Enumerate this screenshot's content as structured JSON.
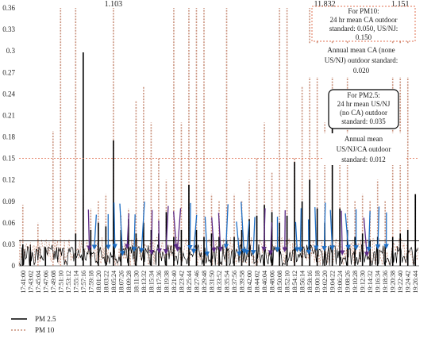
{
  "chart_data": {
    "type": "line",
    "title": "",
    "xlabel": "",
    "ylabel": "",
    "ylim": [
      0,
      0.36
    ],
    "yticks": [
      "0",
      "0.03",
      "0.06",
      "0.09",
      "0.12",
      "0.15",
      "0.18",
      "0.21",
      "0.24",
      "0.27",
      "0.3",
      "0.33",
      "0.36"
    ],
    "xticks": [
      "17:41:00",
      "17:43:02",
      "17:45:04",
      "17:47:06",
      "17:49:08",
      "17:51:10",
      "17:53:12",
      "17:55:14",
      "17:57:16",
      "17:59:18",
      "18:01:20",
      "18:03:22",
      "18:05:24",
      "18:07:26",
      "18:09:28",
      "18:11:30",
      "18:13:32",
      "18:15:34",
      "18:17:36",
      "18:19:38",
      "18:21:40",
      "18:23:42",
      "18:25:44",
      "18:27:46",
      "18:29:48",
      "18:31:50",
      "18:33:52",
      "18:35:54",
      "18:37:56",
      "18:39:58",
      "18:42:00",
      "18:44:02",
      "18:46:04",
      "18:48:06",
      "18:50:08",
      "18:52:10",
      "18:54:12",
      "18:56:14",
      "18:58:16",
      "19:00:18",
      "19:02:20",
      "19:04:22",
      "19:06:24",
      "19:08:26",
      "19:10:28",
      "19:12:30",
      "19:14:32",
      "19:16:34",
      "19:18:36",
      "19:20:38",
      "19:22:40",
      "19:24:42",
      "19:26:44"
    ],
    "series": [
      {
        "name": "PM 2.5",
        "color": "#000000",
        "style": "solid",
        "peaks": [
          {
            "x": "17:41:00",
            "y": 0.03
          },
          {
            "x": "17:43:02",
            "y": 0.02
          },
          {
            "x": "17:47:06",
            "y": 0.025
          },
          {
            "x": "17:55:14",
            "y": 0.045
          },
          {
            "x": "17:57:16",
            "y": 0.298
          },
          {
            "x": "17:59:18",
            "y": 0.05
          },
          {
            "x": "18:01:20",
            "y": 0.06
          },
          {
            "x": "18:03:22",
            "y": 0.055
          },
          {
            "x": "18:05:24",
            "y": 0.175
          },
          {
            "x": "18:07:26",
            "y": 0.05
          },
          {
            "x": "18:09:28",
            "y": 0.065
          },
          {
            "x": "18:11:30",
            "y": 0.045
          },
          {
            "x": "18:13:32",
            "y": 0.06
          },
          {
            "x": "18:15:34",
            "y": 0.05
          },
          {
            "x": "18:17:36",
            "y": 0.045
          },
          {
            "x": "18:19:38",
            "y": 0.075
          },
          {
            "x": "18:21:40",
            "y": 0.04
          },
          {
            "x": "18:23:42",
            "y": 0.05
          },
          {
            "x": "18:25:44",
            "y": 0.113
          },
          {
            "x": "18:27:46",
            "y": 0.05
          },
          {
            "x": "18:29:48",
            "y": 0.04
          },
          {
            "x": "18:31:50",
            "y": 0.045
          },
          {
            "x": "18:33:52",
            "y": 0.04
          },
          {
            "x": "18:35:54",
            "y": 0.035
          },
          {
            "x": "18:37:56",
            "y": 0.04
          },
          {
            "x": "18:39:58",
            "y": 0.05
          },
          {
            "x": "18:42:00",
            "y": 0.065
          },
          {
            "x": "18:44:02",
            "y": 0.07
          },
          {
            "x": "18:46:04",
            "y": 0.085
          },
          {
            "x": "18:48:06",
            "y": 0.075
          },
          {
            "x": "18:50:08",
            "y": 0.06
          },
          {
            "x": "18:52:10",
            "y": 0.07
          },
          {
            "x": "18:54:12",
            "y": 0.145
          },
          {
            "x": "18:56:14",
            "y": 0.09
          },
          {
            "x": "18:58:16",
            "y": 0.12
          },
          {
            "x": "19:00:18",
            "y": 0.08
          },
          {
            "x": "19:02:20",
            "y": 0.06
          },
          {
            "x": "19:04:22",
            "y": 0.22
          },
          {
            "x": "19:06:24",
            "y": 0.08
          },
          {
            "x": "19:08:26",
            "y": 0.05
          },
          {
            "x": "19:10:28",
            "y": 0.04
          },
          {
            "x": "19:12:30",
            "y": 0.045
          },
          {
            "x": "19:14:32",
            "y": 0.035
          },
          {
            "x": "19:16:34",
            "y": 0.04
          },
          {
            "x": "19:18:36",
            "y": 0.03
          },
          {
            "x": "19:20:38",
            "y": 0.04
          },
          {
            "x": "19:22:40",
            "y": 0.045
          },
          {
            "x": "19:24:42",
            "y": 0.05
          },
          {
            "x": "19:26:44",
            "y": 0.1
          }
        ]
      },
      {
        "name": "PM 10",
        "color": "#c9917c",
        "style": "dotted",
        "peaks": [
          {
            "x": "17:41:00",
            "y": 0.085
          },
          {
            "x": "17:45:04",
            "y": 0.06
          },
          {
            "x": "17:49:08",
            "y": 0.188
          },
          {
            "x": "17:51:10",
            "y": 0.36
          },
          {
            "x": "17:55:14",
            "y": 0.36
          },
          {
            "x": "17:57:16",
            "y": 0.1
          },
          {
            "x": "17:59:18",
            "y": 0.08
          },
          {
            "x": "18:01:20",
            "y": 0.09
          },
          {
            "x": "18:03:22",
            "y": 0.1
          },
          {
            "x": "18:05:24",
            "y": 0.36
          },
          {
            "x": "18:07:26",
            "y": 0.07
          },
          {
            "x": "18:09:28",
            "y": 0.08
          },
          {
            "x": "18:11:30",
            "y": 0.23
          },
          {
            "x": "18:13:32",
            "y": 0.25
          },
          {
            "x": "18:15:34",
            "y": 0.2
          },
          {
            "x": "18:17:36",
            "y": 0.15
          },
          {
            "x": "18:19:38",
            "y": 0.12
          },
          {
            "x": "18:21:40",
            "y": 0.36
          },
          {
            "x": "18:23:42",
            "y": 0.2
          },
          {
            "x": "18:25:44",
            "y": 0.36
          },
          {
            "x": "18:27:46",
            "y": 0.36
          },
          {
            "x": "18:29:48",
            "y": 0.36
          },
          {
            "x": "18:31:50",
            "y": 0.1
          },
          {
            "x": "18:33:52",
            "y": 0.09
          },
          {
            "x": "18:35:54",
            "y": 0.36
          },
          {
            "x": "18:37:56",
            "y": 0.1
          },
          {
            "x": "18:39:58",
            "y": 0.09
          },
          {
            "x": "18:42:00",
            "y": 0.12
          },
          {
            "x": "18:44:02",
            "y": 0.15
          },
          {
            "x": "18:46:04",
            "y": 0.2
          },
          {
            "x": "18:48:06",
            "y": 0.13
          },
          {
            "x": "18:50:08",
            "y": 0.36
          },
          {
            "x": "18:52:10",
            "y": 0.36
          },
          {
            "x": "18:54:12",
            "y": 0.15
          },
          {
            "x": "18:56:14",
            "y": 0.25
          },
          {
            "x": "18:58:16",
            "y": 0.36
          },
          {
            "x": "19:00:18",
            "y": 0.36
          },
          {
            "x": "19:02:20",
            "y": 0.2
          },
          {
            "x": "19:04:22",
            "y": 0.36
          },
          {
            "x": "19:06:24",
            "y": 0.15
          },
          {
            "x": "19:08:26",
            "y": 0.36
          },
          {
            "x": "19:10:28",
            "y": 0.09
          },
          {
            "x": "19:12:30",
            "y": 0.1
          },
          {
            "x": "19:14:32",
            "y": 0.09
          },
          {
            "x": "19:16:34",
            "y": 0.12
          },
          {
            "x": "19:18:36",
            "y": 0.09
          },
          {
            "x": "19:20:38",
            "y": 0.36
          },
          {
            "x": "19:22:40",
            "y": 0.34
          },
          {
            "x": "19:24:42",
            "y": 0.36
          },
          {
            "x": "19:26:44",
            "y": 0.1
          }
        ]
      }
    ],
    "reference_lines": [
      {
        "y": 0.15,
        "color": "#e07050",
        "style": "dotted"
      },
      {
        "y": 0.035,
        "color": "#000000",
        "style": "solid"
      }
    ],
    "offscale_labels": [
      {
        "text": "1.103",
        "x": "18:05:24"
      },
      {
        "text": "11.832",
        "x": "19:02:20"
      },
      {
        "text": "1.151",
        "x": "19:22:40"
      }
    ],
    "annotations": {
      "pm10": {
        "line1": "For PM10:",
        "line2": "24 hr mean CA outdoor",
        "line3": "standard: 0.050, US/NJ:",
        "line4": "0.150",
        "line5": "Annual mean CA (none",
        "line6": "US/NJ) outdoor standard:",
        "line7": "0.020"
      },
      "pm25": {
        "line1": "For PM2.5:",
        "line2": "24 hr mean US/NJ",
        "line3": "(no CA) outdoor",
        "line4": "standard: 0.035",
        "line5": "Annual mean",
        "line6": "US/NJ/CA outdoor",
        "line7": "standard: 0.012"
      }
    },
    "legend": {
      "placement": "bottom-left",
      "pm25": "PM 2.5",
      "pm10": "PM 10"
    },
    "arrow_colors": [
      "#1f6fc5",
      "#5b2a86"
    ],
    "grid": false
  }
}
